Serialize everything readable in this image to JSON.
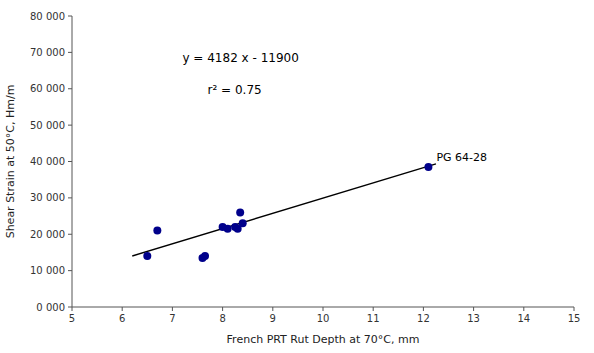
{
  "chart_data": {
    "type": "scatter",
    "x_label": "French PRT Rut Depth at 70°C, mm",
    "y_label": "Shear Strain at 50°C, Hm/m",
    "series": [
      {
        "type": "scatter",
        "color": "#00008B",
        "x": [
          6.5,
          6.7,
          7.6,
          7.65,
          8.0,
          8.1,
          8.25,
          8.3,
          8.35,
          8.4,
          12.1
        ],
        "values": [
          14000,
          21000,
          13500,
          14000,
          22000,
          21500,
          22000,
          21500,
          26000,
          23000,
          38500
        ]
      },
      {
        "type": "line",
        "color": "#000000",
        "x": [
          6.2,
          12.25
        ],
        "values": [
          14028.4,
          39329.5
        ]
      }
    ],
    "annotations": [
      {
        "text": "y = 4182 x - 11900"
      },
      {
        "text": "r² = 0.75"
      },
      {
        "text": "PG 64-28"
      }
    ],
    "xlim": [
      5,
      15
    ],
    "ylim": [
      0,
      80000
    ],
    "xticks": [
      5,
      6,
      7,
      8,
      9,
      10,
      11,
      12,
      13,
      14,
      15
    ],
    "yticks": [
      {
        "value": 0,
        "label": "0 000"
      },
      {
        "value": 10000,
        "label": "10 000"
      },
      {
        "value": 20000,
        "label": "20 000"
      },
      {
        "value": 30000,
        "label": "30 000"
      },
      {
        "value": 40000,
        "label": "40 000"
      },
      {
        "value": 50000,
        "label": "50 000"
      },
      {
        "value": 60000,
        "label": "60 000"
      },
      {
        "value": 70000,
        "label": "70 000"
      },
      {
        "value": 80000,
        "label": "80 000"
      }
    ],
    "grid": false
  }
}
